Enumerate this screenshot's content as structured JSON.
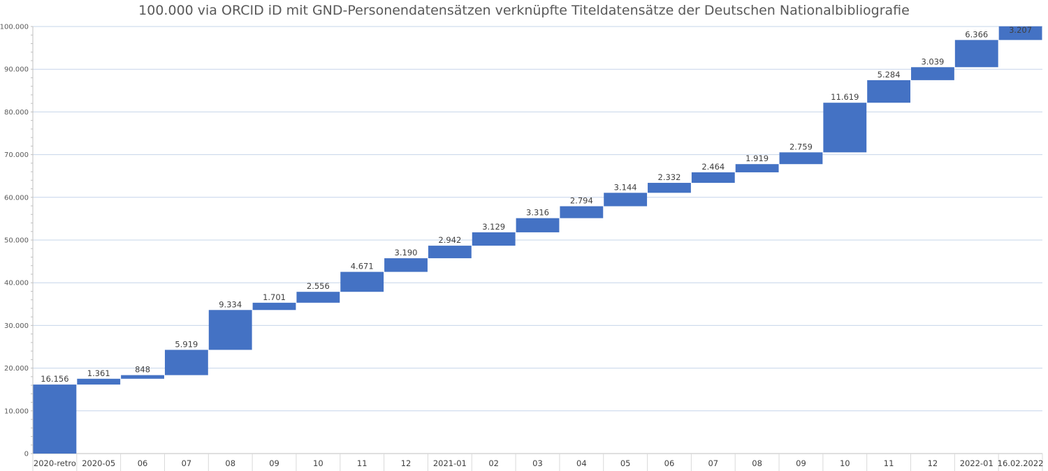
{
  "chart_data": {
    "type": "waterfall",
    "title": "100.000 via ORCID iD mit GND-Personendatensätzen verknüpfte Titeldatensätze der Deutschen Nationalbibliografie",
    "xlabel": "",
    "ylabel": "",
    "ylim": [
      0,
      100000
    ],
    "y_ticks": [
      0,
      10000,
      20000,
      30000,
      40000,
      50000,
      60000,
      70000,
      80000,
      90000,
      100000
    ],
    "y_tick_labels": [
      "0",
      "10.000",
      "20.000",
      "30.000",
      "40.000",
      "50.000",
      "60.000",
      "70.000",
      "80.000",
      "90.000",
      "100.000"
    ],
    "grid": true,
    "legend": "none",
    "bar_color": "#4472c4",
    "categories": [
      "2020-retro",
      "2020-05",
      "06",
      "07",
      "08",
      "09",
      "10",
      "11",
      "12",
      "2021-01",
      "02",
      "03",
      "04",
      "05",
      "06",
      "07",
      "08",
      "09",
      "10",
      "11",
      "12",
      "2022-01",
      "16.02.2022"
    ],
    "values": [
      16156,
      1361,
      848,
      5919,
      9334,
      1701,
      2556,
      4671,
      3190,
      2942,
      3129,
      3316,
      2794,
      3144,
      2332,
      2464,
      1919,
      2759,
      11619,
      5284,
      3039,
      6366,
      3207
    ],
    "value_labels": [
      "16.156",
      "1.361",
      "848",
      "5.919",
      "9.334",
      "1.701",
      "2.556",
      "4.671",
      "3.190",
      "2.942",
      "3.129",
      "3.316",
      "2.794",
      "3.144",
      "2.332",
      "2.464",
      "1.919",
      "2.759",
      "11.619",
      "5.284",
      "3.039",
      "6.366",
      "3.207"
    ]
  }
}
